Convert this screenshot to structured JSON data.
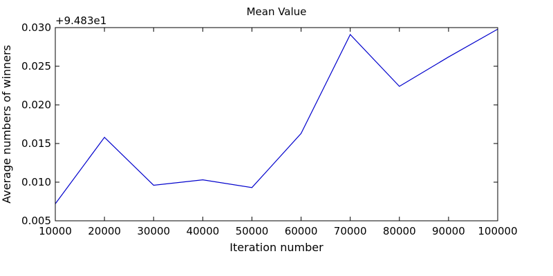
{
  "chart_data": {
    "type": "line",
    "title": "Mean Value",
    "xlabel": "Iteration number",
    "ylabel": "Average numbers of winners",
    "offset_label": "+9.483e1",
    "xlim": [
      10000,
      100000
    ],
    "ylim": [
      0.005,
      0.03
    ],
    "grid": false,
    "x_ticks": [
      10000,
      20000,
      30000,
      40000,
      50000,
      60000,
      70000,
      80000,
      90000,
      100000
    ],
    "x_tick_labels": [
      "10000",
      "20000",
      "30000",
      "40000",
      "50000",
      "60000",
      "70000",
      "80000",
      "90000",
      "100000"
    ],
    "y_ticks": [
      0.005,
      0.01,
      0.015,
      0.02,
      0.025,
      0.03
    ],
    "y_tick_labels": [
      "0.005",
      "0.010",
      "0.015",
      "0.020",
      "0.025",
      "0.030"
    ],
    "series": [
      {
        "color": "#0000cc",
        "x": [
          10000,
          20000,
          30000,
          40000,
          50000,
          60000,
          70000,
          80000,
          90000,
          100000
        ],
        "y": [
          0.0072,
          0.0158,
          0.0096,
          0.0103,
          0.0093,
          0.0163,
          0.0291,
          0.0224,
          0.0262,
          0.0298
        ]
      }
    ]
  }
}
